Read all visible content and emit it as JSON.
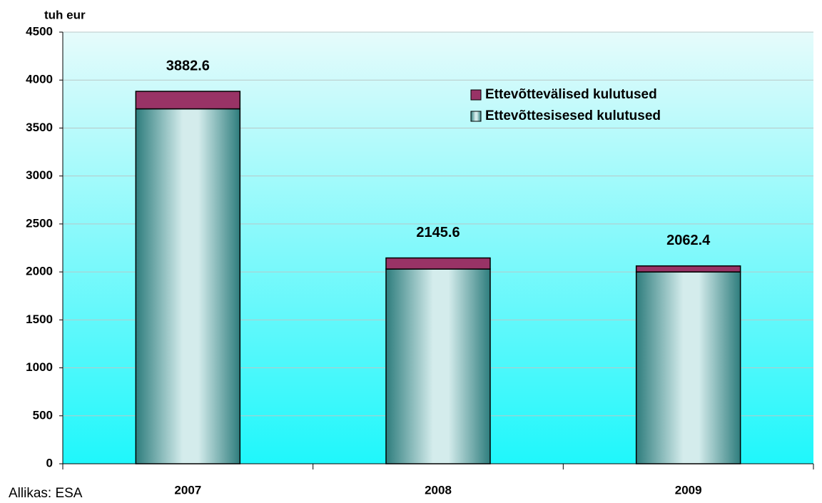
{
  "chart_data": {
    "type": "stacked_bar",
    "y_label": "tuh eur",
    "source": "Allikas: ESA",
    "categories": [
      "2007",
      "2008",
      "2009"
    ],
    "series": [
      {
        "name": "Ettevõttesisesed kulutused",
        "color": "#2e7d7d",
        "values": [
          3700,
          2030,
          2000
        ]
      },
      {
        "name": "Ettevõttevälised kulutused",
        "color": "#993366",
        "values": [
          182.6,
          115.6,
          62.4
        ]
      }
    ],
    "totals": [
      3882.6,
      2145.6,
      2062.4
    ],
    "ylim": [
      0,
      4500
    ],
    "yticks": [
      0,
      500,
      1000,
      1500,
      2000,
      2500,
      3000,
      3500,
      4000,
      4500
    ],
    "grid": true
  }
}
